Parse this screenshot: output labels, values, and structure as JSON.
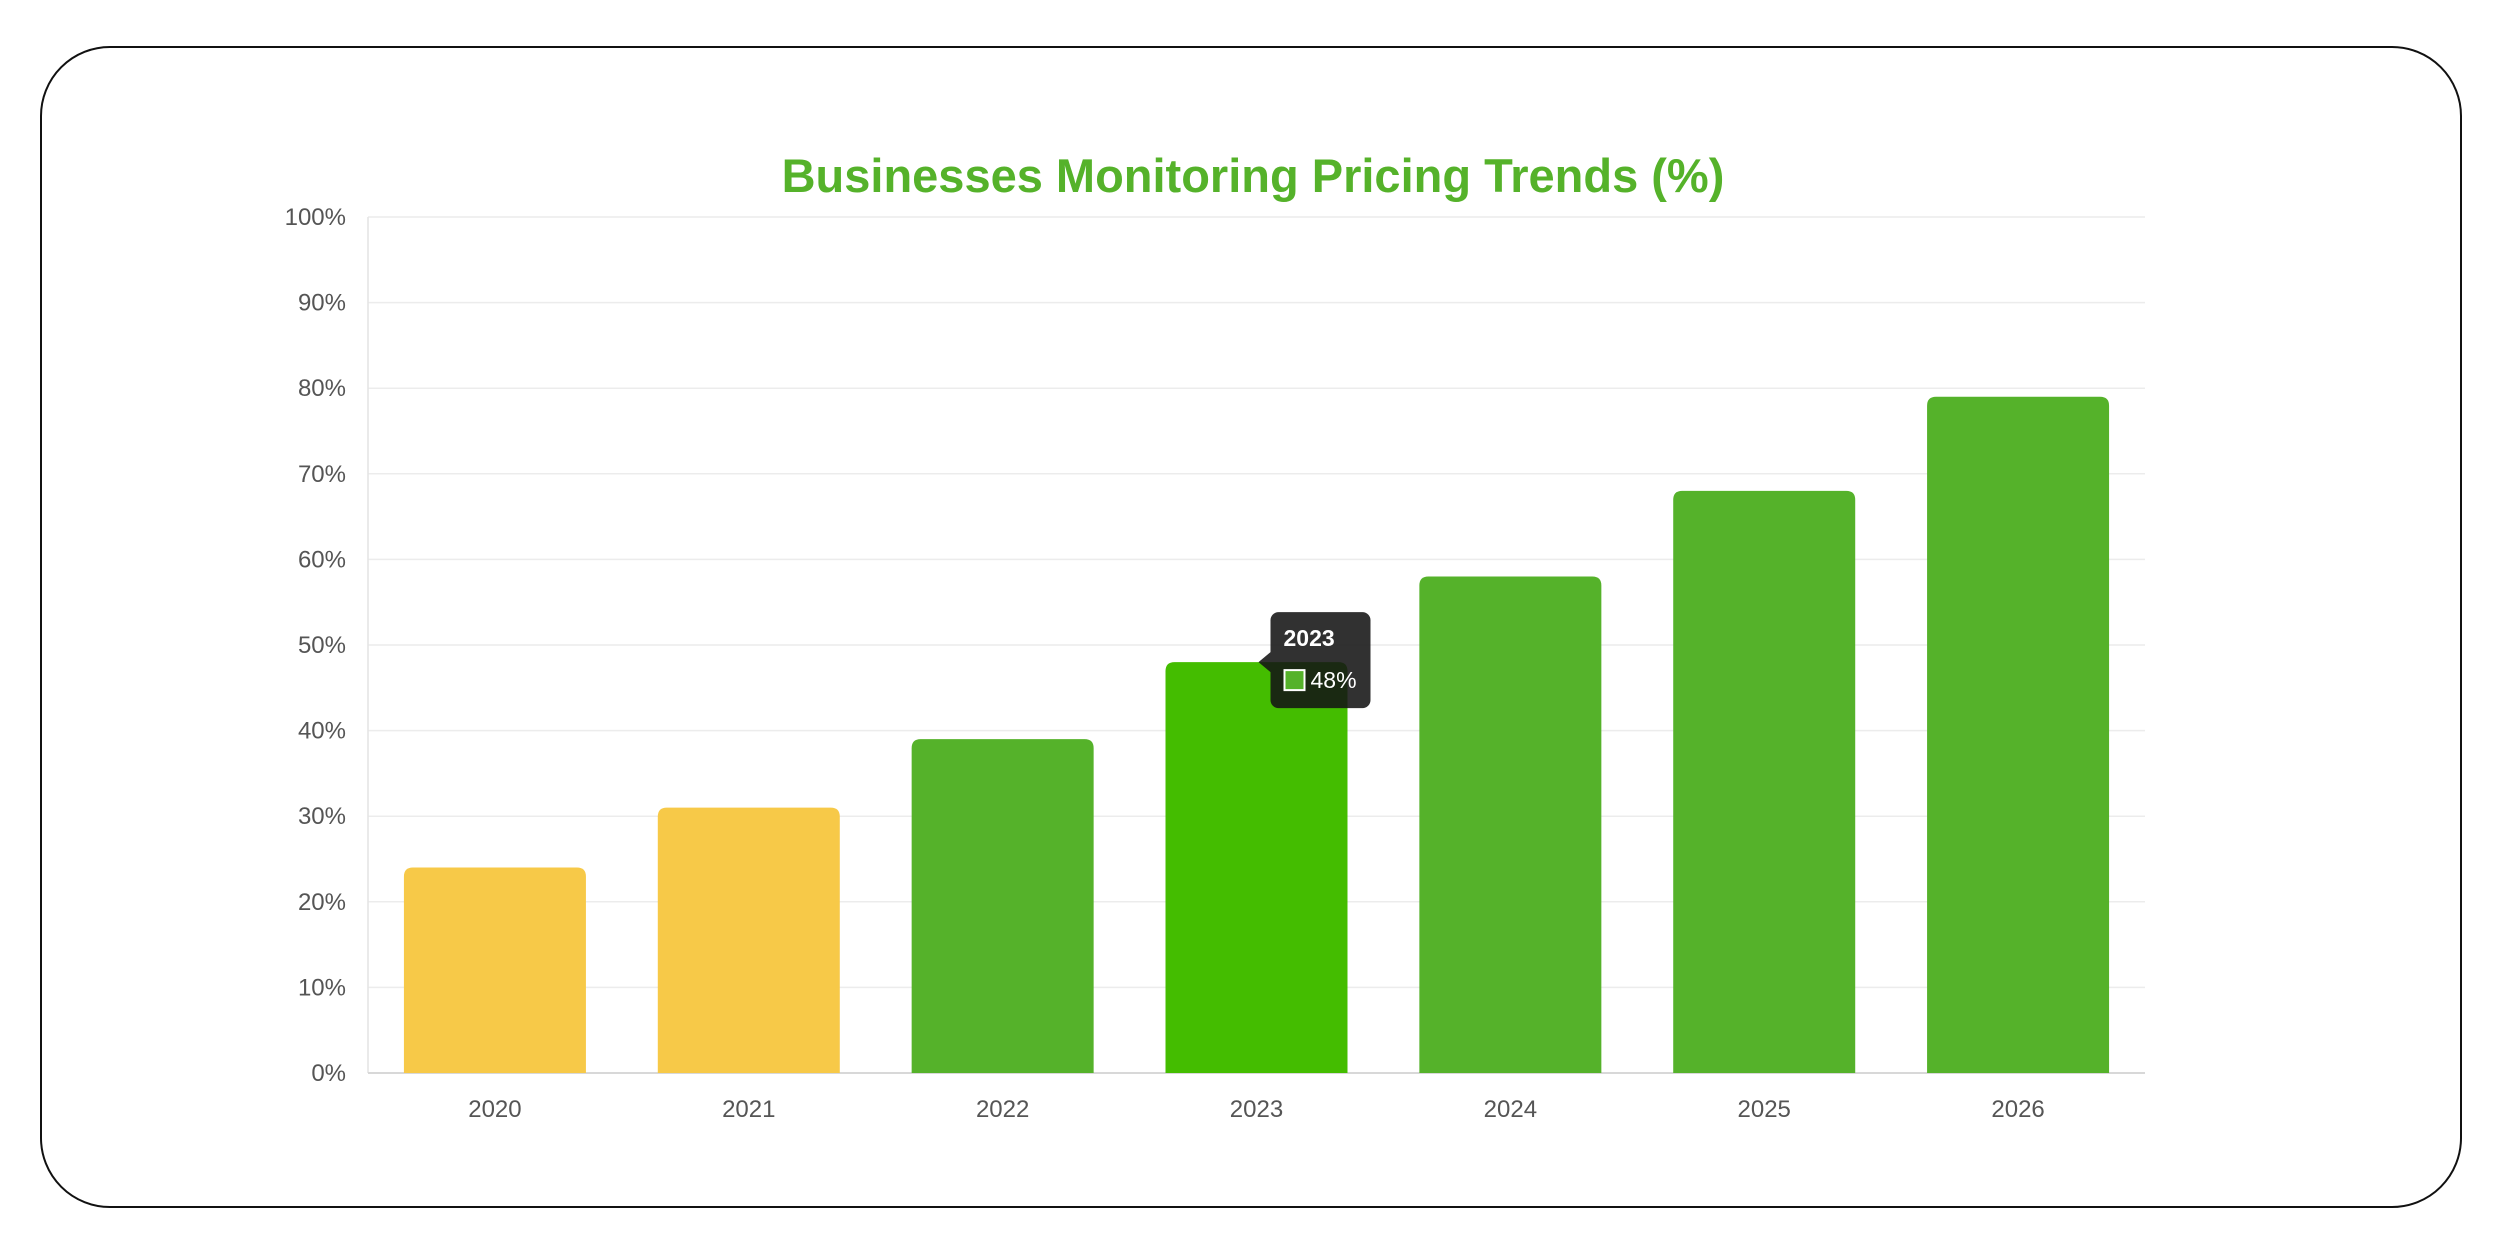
{
  "chart_data": {
    "type": "bar",
    "title": "Businesses Monitoring Pricing Trends (%)",
    "categories": [
      "2020",
      "2021",
      "2022",
      "2023",
      "2024",
      "2025",
      "2026"
    ],
    "values": [
      24,
      31,
      39,
      48,
      58,
      68,
      79
    ],
    "ylim": [
      0,
      100
    ],
    "yticks": [
      "0%",
      "10%",
      "20%",
      "30%",
      "40%",
      "50%",
      "60%",
      "70%",
      "80%",
      "90%",
      "100%"
    ],
    "xlabel": "",
    "ylabel": "",
    "grid": true,
    "legend": "none",
    "bar_colors": [
      "#f7c948",
      "#f7c948",
      "#55b22a",
      "#44bd00",
      "#55b22a",
      "#55b22a",
      "#55b22a"
    ],
    "title_color": "#55b22a",
    "tooltip": {
      "category": "2023",
      "value_label": "48%",
      "swatch_color": "#55b22a"
    }
  }
}
